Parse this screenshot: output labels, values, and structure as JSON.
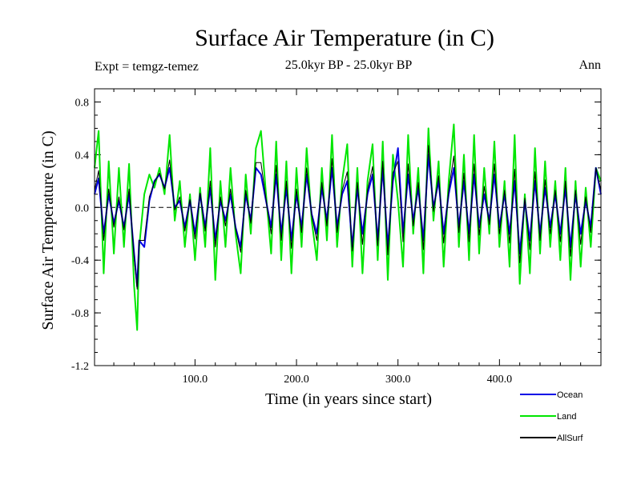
{
  "chart_data": {
    "type": "line",
    "title": "Surface Air Temperature (in C)",
    "subtitle": "25.0kyr BP - 25.0kyr BP",
    "left_label": "Expt = temgz-temez",
    "right_label": "Ann",
    "xlabel": "Time (in years since start)",
    "ylabel": "Surface Air Temperature (in C)",
    "xlim": [
      1,
      500
    ],
    "ylim": [
      -1.2,
      0.9
    ],
    "xticks": [
      100,
      200,
      300,
      400
    ],
    "xtick_labels": [
      "100.0",
      "200.0",
      "300.0",
      "400.0"
    ],
    "yticks": [
      0.8,
      0.4,
      0.0,
      -0.4,
      -0.8,
      -1.2
    ],
    "ytick_labels": [
      "0.8",
      "0.4",
      "0.0",
      "-0.4",
      "-0.8",
      "-1.2"
    ],
    "zero_line": true,
    "series": [
      {
        "name": "Land",
        "color": "#00e600",
        "x": [
          1,
          5,
          10,
          15,
          20,
          25,
          30,
          35,
          40,
          43,
          45,
          50,
          55,
          60,
          65,
          70,
          75,
          80,
          85,
          90,
          95,
          100,
          105,
          110,
          115,
          120,
          125,
          130,
          135,
          140,
          145,
          150,
          155,
          160,
          165,
          170,
          175,
          180,
          185,
          190,
          195,
          200,
          205,
          210,
          215,
          220,
          225,
          230,
          235,
          240,
          245,
          250,
          255,
          260,
          265,
          270,
          275,
          280,
          285,
          290,
          295,
          300,
          305,
          310,
          315,
          320,
          325,
          330,
          335,
          340,
          345,
          350,
          355,
          360,
          365,
          370,
          375,
          380,
          385,
          390,
          395,
          400,
          405,
          410,
          415,
          420,
          425,
          430,
          435,
          440,
          445,
          450,
          455,
          460,
          465,
          470,
          475,
          480,
          485,
          490,
          495,
          500
        ],
        "values": [
          0.3,
          0.58,
          -0.5,
          0.35,
          -0.35,
          0.3,
          -0.3,
          0.33,
          -0.6,
          -0.93,
          -0.3,
          0.1,
          0.25,
          0.15,
          0.3,
          0.1,
          0.55,
          -0.1,
          0.2,
          -0.3,
          0.1,
          -0.4,
          0.15,
          -0.3,
          0.45,
          -0.55,
          0.2,
          -0.3,
          0.3,
          -0.2,
          -0.5,
          0.25,
          -0.2,
          0.45,
          0.58,
          0.1,
          -0.35,
          0.5,
          -0.4,
          0.35,
          -0.5,
          0.3,
          -0.3,
          0.45,
          -0.1,
          -0.4,
          0.3,
          -0.25,
          0.55,
          -0.3,
          0.2,
          0.48,
          -0.45,
          0.3,
          -0.5,
          0.2,
          0.48,
          -0.4,
          0.5,
          -0.55,
          0.4,
          0.05,
          -0.45,
          0.55,
          -0.2,
          0.3,
          -0.5,
          0.6,
          -0.1,
          0.35,
          -0.45,
          0.2,
          0.63,
          -0.3,
          0.4,
          -0.4,
          0.55,
          -0.35,
          0.3,
          -0.2,
          0.5,
          -0.3,
          0.2,
          -0.45,
          0.55,
          -0.58,
          0.1,
          -0.5,
          0.45,
          -0.35,
          0.35,
          -0.3,
          0.2,
          -0.4,
          0.3,
          -0.55,
          0.2,
          -0.45,
          0.15,
          -0.3,
          0.3,
          0.2
        ]
      },
      {
        "name": "Ocean",
        "color": "#0000e6",
        "x": [
          1,
          5,
          10,
          15,
          20,
          25,
          30,
          35,
          40,
          43,
          45,
          50,
          55,
          60,
          65,
          70,
          75,
          80,
          85,
          90,
          95,
          100,
          105,
          110,
          115,
          120,
          125,
          130,
          135,
          140,
          145,
          150,
          155,
          160,
          165,
          170,
          175,
          180,
          185,
          190,
          195,
          200,
          205,
          210,
          215,
          220,
          225,
          230,
          235,
          240,
          245,
          250,
          255,
          260,
          265,
          270,
          275,
          280,
          285,
          290,
          295,
          300,
          305,
          310,
          315,
          320,
          325,
          330,
          335,
          340,
          345,
          350,
          355,
          360,
          365,
          370,
          375,
          380,
          385,
          390,
          395,
          400,
          405,
          410,
          415,
          420,
          425,
          430,
          435,
          440,
          445,
          450,
          455,
          460,
          465,
          470,
          475,
          480,
          485,
          490,
          495,
          500
        ],
        "values": [
          0.1,
          0.22,
          -0.2,
          0.1,
          -0.12,
          0.05,
          -0.15,
          0.1,
          -0.35,
          -0.6,
          -0.25,
          -0.3,
          0.05,
          0.2,
          0.25,
          0.15,
          0.3,
          0.0,
          0.05,
          -0.15,
          0.05,
          -0.2,
          0.1,
          -0.15,
          0.15,
          -0.25,
          0.05,
          -0.1,
          0.1,
          -0.15,
          -0.3,
          0.1,
          -0.1,
          0.3,
          0.25,
          0.05,
          -0.15,
          0.25,
          -0.2,
          0.15,
          -0.25,
          0.1,
          -0.15,
          0.25,
          -0.05,
          -0.2,
          0.15,
          -0.1,
          0.3,
          -0.15,
          0.1,
          0.2,
          -0.3,
          0.15,
          -0.2,
          0.1,
          0.25,
          -0.25,
          0.3,
          -0.3,
          0.2,
          0.45,
          -0.2,
          0.25,
          -0.1,
          0.15,
          -0.25,
          0.4,
          0.0,
          0.2,
          -0.2,
          0.1,
          0.3,
          -0.15,
          0.2,
          -0.2,
          0.25,
          -0.15,
          0.1,
          -0.1,
          0.25,
          -0.15,
          0.1,
          -0.2,
          0.2,
          -0.35,
          0.05,
          -0.25,
          0.2,
          -0.2,
          0.15,
          -0.15,
          0.1,
          -0.2,
          0.15,
          -0.3,
          0.1,
          -0.2,
          0.05,
          -0.15,
          0.3,
          0.1
        ]
      },
      {
        "name": "AllSurf",
        "color": "#000000",
        "x": [
          1,
          5,
          10,
          15,
          20,
          25,
          30,
          35,
          40,
          43,
          45,
          50,
          55,
          60,
          65,
          70,
          75,
          80,
          85,
          90,
          95,
          100,
          105,
          110,
          115,
          120,
          125,
          130,
          135,
          140,
          145,
          150,
          155,
          160,
          165,
          170,
          175,
          180,
          185,
          190,
          195,
          200,
          205,
          210,
          215,
          220,
          225,
          230,
          235,
          240,
          245,
          250,
          255,
          260,
          265,
          270,
          275,
          280,
          285,
          290,
          295,
          300,
          305,
          310,
          315,
          320,
          325,
          330,
          335,
          340,
          345,
          350,
          355,
          360,
          365,
          370,
          375,
          380,
          385,
          390,
          395,
          400,
          405,
          410,
          415,
          420,
          425,
          430,
          435,
          440,
          445,
          450,
          455,
          460,
          465,
          470,
          475,
          480,
          485,
          490,
          495,
          500
        ],
        "values": [
          0.13,
          0.28,
          -0.25,
          0.14,
          -0.15,
          0.08,
          -0.17,
          0.14,
          -0.38,
          -0.62,
          -0.25,
          -0.25,
          0.08,
          0.19,
          0.26,
          0.14,
          0.36,
          -0.02,
          0.08,
          -0.18,
          0.06,
          -0.24,
          0.11,
          -0.18,
          0.2,
          -0.3,
          0.08,
          -0.14,
          0.14,
          -0.16,
          -0.34,
          0.13,
          -0.12,
          0.34,
          0.34,
          0.06,
          -0.2,
          0.32,
          -0.25,
          0.2,
          -0.31,
          0.14,
          -0.19,
          0.3,
          -0.06,
          -0.25,
          0.19,
          -0.14,
          0.37,
          -0.19,
          0.13,
          0.27,
          -0.33,
          0.19,
          -0.28,
          0.13,
          0.31,
          -0.29,
          0.35,
          -0.36,
          0.26,
          0.35,
          -0.26,
          0.33,
          -0.14,
          0.19,
          -0.32,
          0.47,
          -0.03,
          0.24,
          -0.27,
          0.13,
          0.39,
          -0.19,
          0.26,
          -0.26,
          0.33,
          -0.21,
          0.16,
          -0.13,
          0.33,
          -0.2,
          0.13,
          -0.27,
          0.29,
          -0.42,
          0.07,
          -0.32,
          0.27,
          -0.25,
          0.21,
          -0.2,
          0.13,
          -0.26,
          0.2,
          -0.37,
          0.13,
          -0.28,
          0.08,
          -0.19,
          0.3,
          0.13
        ]
      }
    ],
    "legend": [
      {
        "name": "Ocean",
        "color": "#0000e6"
      },
      {
        "name": "Land",
        "color": "#00e600"
      },
      {
        "name": "AllSurf",
        "color": "#000000"
      }
    ],
    "legend_position": "bottom-right"
  }
}
